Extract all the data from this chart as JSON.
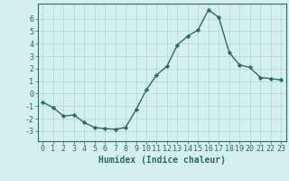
{
  "x": [
    0,
    1,
    2,
    3,
    4,
    5,
    6,
    7,
    8,
    9,
    10,
    11,
    12,
    13,
    14,
    15,
    16,
    17,
    18,
    19,
    20,
    21,
    22,
    23
  ],
  "y": [
    -0.7,
    -1.1,
    -1.8,
    -1.7,
    -2.3,
    -2.7,
    -2.8,
    -2.85,
    -2.7,
    -1.3,
    0.3,
    1.5,
    2.2,
    3.9,
    4.6,
    5.1,
    6.7,
    6.1,
    3.3,
    2.3,
    2.1,
    1.3,
    1.2,
    1.1
  ],
  "line_color": "#2d6b5e",
  "marker": "D",
  "marker_size": 2.2,
  "bg_color": "#d4f0ec",
  "grid_color": "#aed8d2",
  "xlabel": "Humidex (Indice chaleur)",
  "ylim": [
    -3.8,
    7.2
  ],
  "xlim": [
    -0.5,
    23.5
  ],
  "yticks": [
    -3,
    -2,
    -1,
    0,
    1,
    2,
    3,
    4,
    5,
    6
  ],
  "xticks": [
    0,
    1,
    2,
    3,
    4,
    5,
    6,
    7,
    8,
    9,
    10,
    11,
    12,
    13,
    14,
    15,
    16,
    17,
    18,
    19,
    20,
    21,
    22,
    23
  ],
  "xtick_labels": [
    "0",
    "1",
    "2",
    "3",
    "4",
    "5",
    "6",
    "7",
    "8",
    "9",
    "10",
    "11",
    "12",
    "13",
    "14",
    "15",
    "16",
    "17",
    "18",
    "19",
    "20",
    "21",
    "22",
    "23"
  ],
  "line_width": 1.0,
  "tick_fontsize": 6.0,
  "xlabel_fontsize": 7.0
}
